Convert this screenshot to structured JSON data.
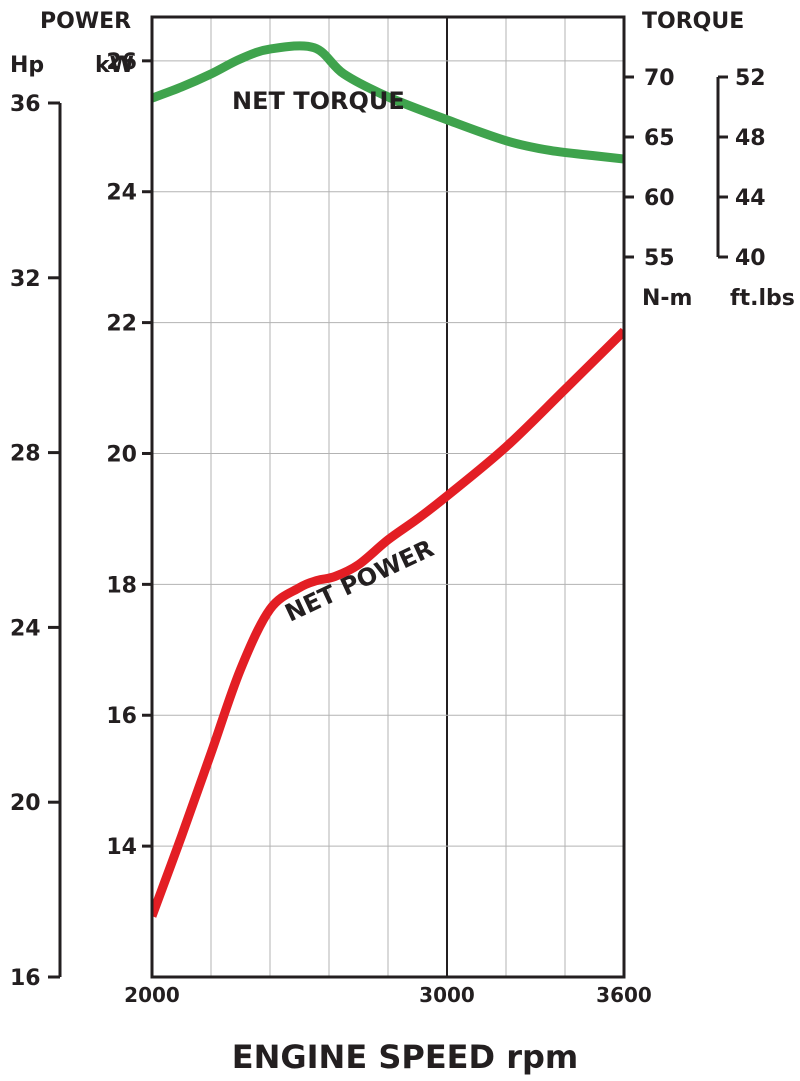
{
  "chart_data": {
    "type": "line",
    "xlabel": "ENGINE SPEED rpm",
    "xlim": [
      2000,
      3600
    ],
    "x_ticks": [
      2000,
      3000,
      3600
    ],
    "x_grid_step": 200,
    "left_axis": {
      "title": "POWER",
      "kw_unit": "kW",
      "hp_unit": "Hp",
      "kw_ylim": [
        12,
        26.67
      ],
      "kw_ticks": [
        14,
        16,
        18,
        20,
        22,
        24,
        26
      ],
      "hp_ticks": [
        16,
        20,
        24,
        28,
        32,
        36
      ],
      "hp_at_bottom": 16,
      "hp_at_top": 36
    },
    "right_axis": {
      "title": "TORQUE",
      "nm_unit": "N-m",
      "ftlbs_unit": "ft.lbs",
      "nm_ylim": [
        55,
        70
      ],
      "nm_ticks": [
        55,
        60,
        65,
        70
      ],
      "ftlbs_ticks": [
        40,
        44,
        48,
        52
      ],
      "ftlbs_ylim": [
        40,
        52
      ]
    },
    "grid": true,
    "series": [
      {
        "name": "NET TORQUE",
        "unit": "kW-axis",
        "color": "#3fa34d",
        "x": [
          2000,
          2100,
          2200,
          2300,
          2400,
          2550,
          2650,
          2800,
          3000,
          3200,
          3350,
          3500,
          3600
        ],
        "y": [
          25.43,
          25.6,
          25.8,
          26.03,
          26.18,
          26.2,
          25.8,
          25.45,
          25.1,
          24.78,
          24.63,
          24.55,
          24.5
        ]
      },
      {
        "name": "NET POWER",
        "color": "#e31e24",
        "x": [
          2000,
          2100,
          2200,
          2300,
          2400,
          2500,
          2560,
          2620,
          2700,
          2800,
          2900,
          3000,
          3200,
          3400,
          3600
        ],
        "y": [
          12.93,
          14.15,
          15.42,
          16.7,
          17.62,
          17.95,
          18.06,
          18.12,
          18.3,
          18.68,
          19.0,
          19.35,
          20.1,
          20.98,
          21.87
        ]
      }
    ]
  }
}
